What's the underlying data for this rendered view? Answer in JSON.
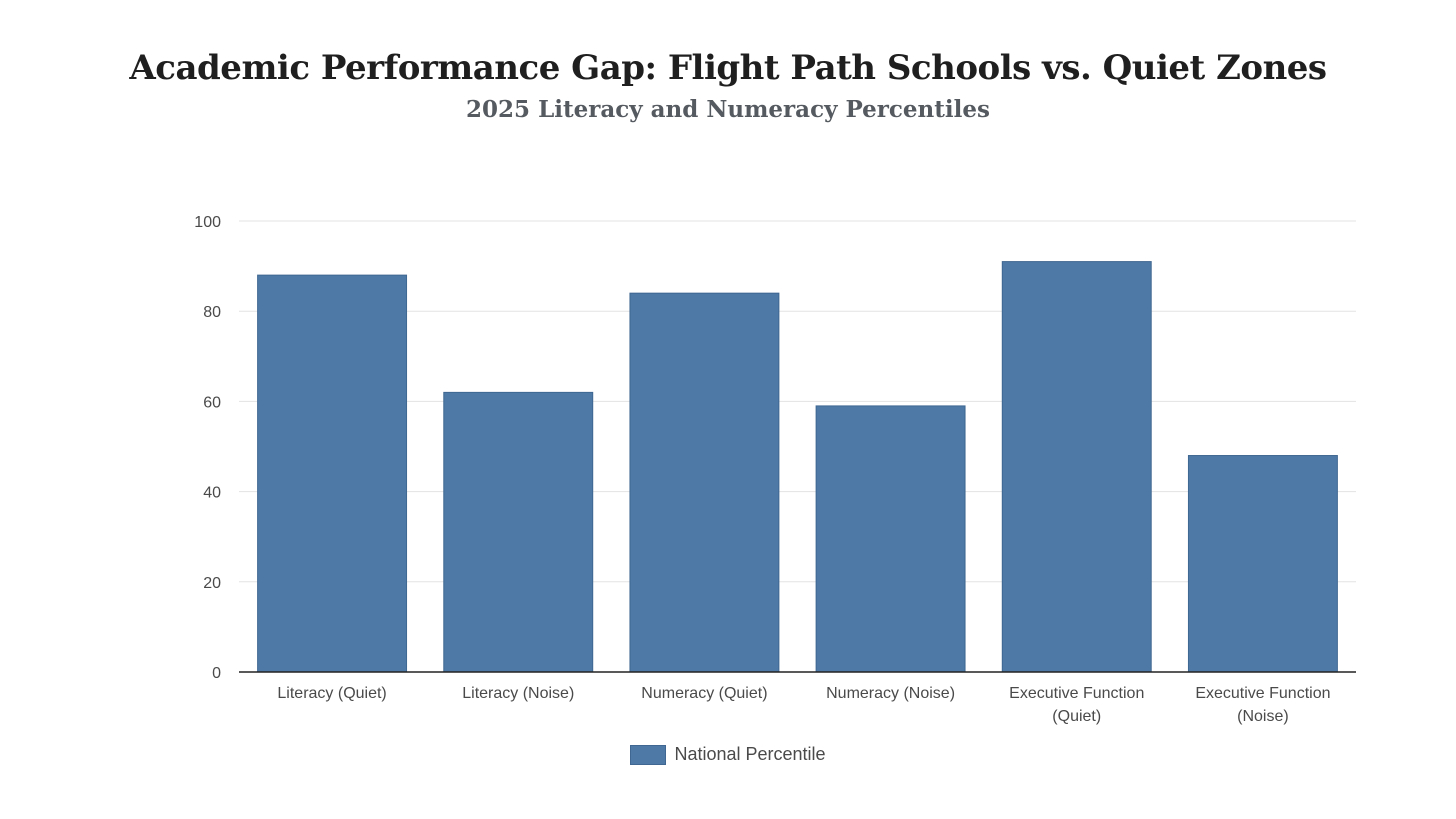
{
  "chart_data": {
    "type": "bar",
    "title": "Academic Performance Gap: Flight Path Schools vs. Quiet Zones",
    "subtitle": "2025 Literacy and Numeracy Percentiles",
    "categories": [
      [
        "Literacy (Quiet)"
      ],
      [
        "Literacy (Noise)"
      ],
      [
        "Numeracy (Quiet)"
      ],
      [
        "Numeracy (Noise)"
      ],
      [
        "Executive Function",
        "(Quiet)"
      ],
      [
        "Executive Function",
        "(Noise)"
      ]
    ],
    "series": [
      {
        "name": "National Percentile",
        "values": [
          88,
          62,
          84,
          59,
          91,
          48
        ]
      }
    ],
    "xlabel": "",
    "ylabel": "",
    "ylim": [
      0,
      100
    ],
    "yticks": [
      0,
      20,
      40,
      60,
      80,
      100
    ],
    "grid": true,
    "legend_position": "bottom-center",
    "colors": {
      "bar": "#4e79a7",
      "bar_border": "#3f6791",
      "grid": "#e3e3e3",
      "axis": "#222222"
    }
  }
}
